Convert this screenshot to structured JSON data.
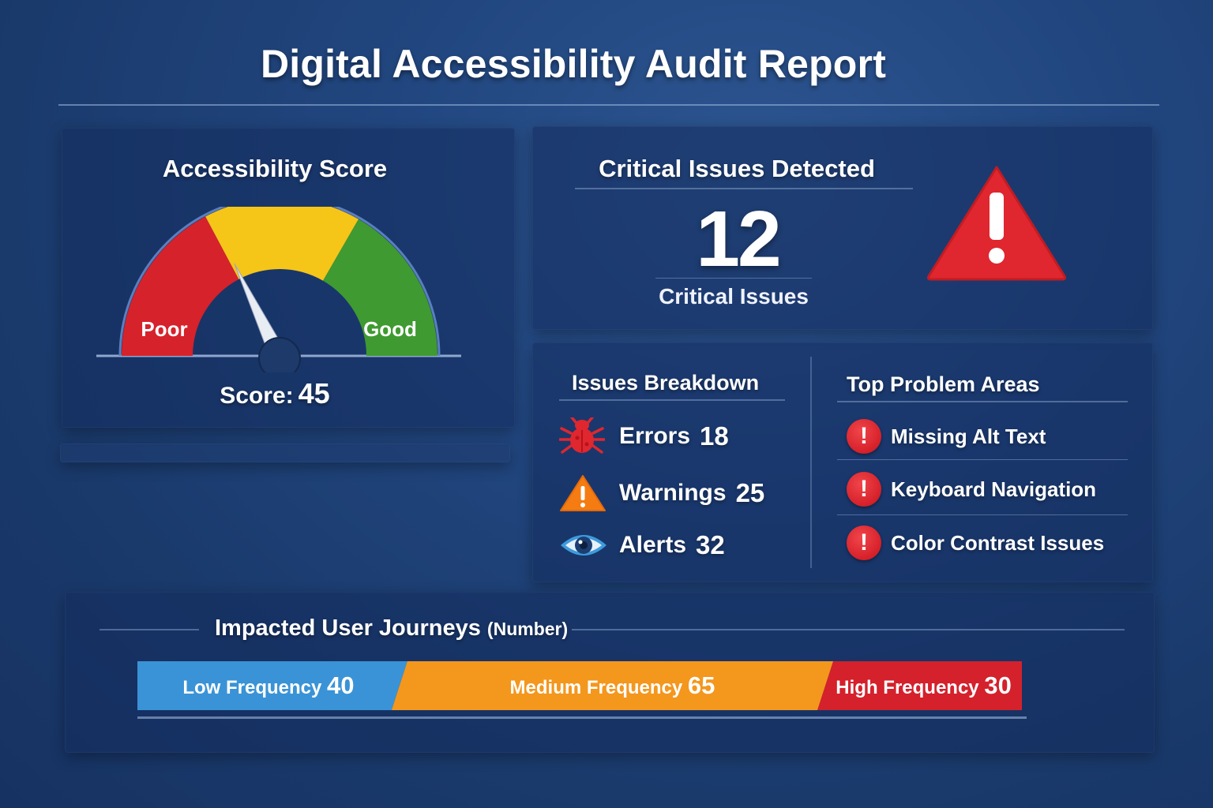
{
  "header": {
    "title": "Digital Accessibility Audit Report"
  },
  "score_panel": {
    "title": "Accessibility Score",
    "gauge_low_label": "Poor",
    "gauge_high_label": "Good",
    "score_prefix": "Score:",
    "score_value": "45",
    "gauge_level_percent": 45
  },
  "critical_panel": {
    "title": "Critical Issues Detected",
    "count": "12",
    "label": "Critical Issues",
    "icon": "warning-triangle-icon"
  },
  "breakdown": {
    "title": "Issues Breakdown",
    "items": [
      {
        "icon": "bug-icon",
        "label": "Errors",
        "value": "18"
      },
      {
        "icon": "warning-icon",
        "label": "Warnings",
        "value": "25"
      },
      {
        "icon": "eye-icon",
        "label": "Alerts",
        "value": "32"
      }
    ]
  },
  "problem_areas": {
    "title": "Top Problem Areas",
    "items": [
      {
        "icon": "exclamation-icon",
        "label": "Missing Alt Text"
      },
      {
        "icon": "exclamation-icon",
        "label": "Keyboard Navigation"
      },
      {
        "icon": "exclamation-icon",
        "label": "Color Contrast Issues"
      }
    ]
  },
  "journeys": {
    "title": "Impacted User Journeys",
    "subtitle": "(Number)",
    "segments": [
      {
        "label": "Low Frequency",
        "value": 40,
        "color": "#3a93d6"
      },
      {
        "label": "Medium Frequency",
        "value": 65,
        "color": "#f4971d"
      },
      {
        "label": "High Frequency",
        "value": 30,
        "color": "#d4212c"
      }
    ]
  },
  "colors": {
    "gauge_poor": "#d6222b",
    "gauge_mid": "#f5c518",
    "gauge_good": "#3f9a31",
    "critical": "#e0262e",
    "warning": "#f57c12",
    "eye": "#3d9bdc"
  }
}
